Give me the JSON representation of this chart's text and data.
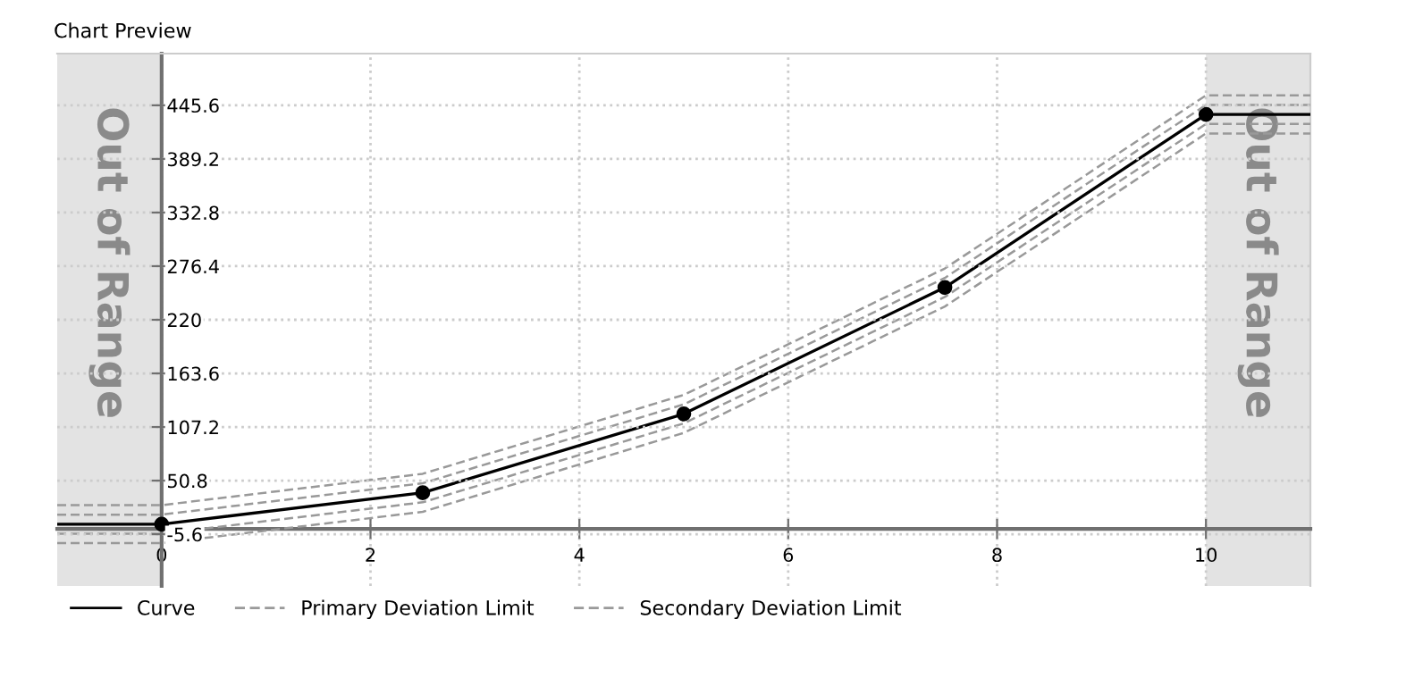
{
  "chart_data": {
    "type": "line",
    "title": "Chart Preview",
    "xlim": [
      -1,
      11
    ],
    "ylim": [
      -60,
      500
    ],
    "xticks": [
      0,
      2,
      4,
      6,
      8,
      10
    ],
    "yticks": [
      -5.6,
      50.8,
      107.2,
      163.6,
      220,
      276.4,
      332.8,
      389.2,
      445.6
    ],
    "grid": true,
    "legend": "bottom",
    "marker": "circle",
    "bands": [
      {
        "axis": "x",
        "from": -1,
        "to": 0,
        "label": "Out of Range",
        "color": "#e3e3e3"
      },
      {
        "axis": "x",
        "from": 10,
        "to": 11,
        "label": "Out of Range",
        "color": "#e3e3e3"
      }
    ],
    "series": [
      {
        "name": "Curve",
        "color": "#000000",
        "line_style": "solid",
        "x": [
          -1,
          0,
          2.5,
          5,
          7.5,
          10,
          11
        ],
        "values": [
          5,
          5,
          38,
          121,
          254,
          436,
          436
        ]
      },
      {
        "name": "Primary Deviation Limit",
        "color": "#999999",
        "line_style": "dashed",
        "marker": "none",
        "x": [
          -1,
          0,
          2.5,
          5,
          7.5,
          10,
          11
        ],
        "values": [
          15,
          15,
          48,
          131,
          264,
          446,
          446
        ]
      },
      {
        "color": "#999999",
        "line_style": "dashed",
        "marker": "none",
        "x": [
          -1,
          0,
          2.5,
          5,
          7.5,
          10,
          11
        ],
        "values": [
          -5,
          -5,
          28,
          111,
          244,
          426,
          426
        ]
      },
      {
        "name": "Secondary Deviation Limit",
        "color": "#999999",
        "line_style": "dashed",
        "marker": "none",
        "x": [
          -1,
          0,
          2.5,
          5,
          7.5,
          10,
          11
        ],
        "values": [
          25,
          25,
          58,
          141,
          274,
          456,
          456
        ]
      },
      {
        "color": "#999999",
        "line_style": "dashed",
        "marker": "none",
        "x": [
          -1,
          0,
          2.5,
          5,
          7.5,
          10,
          11
        ],
        "values": [
          -15,
          -15,
          18,
          101,
          234,
          416,
          416
        ]
      }
    ]
  }
}
